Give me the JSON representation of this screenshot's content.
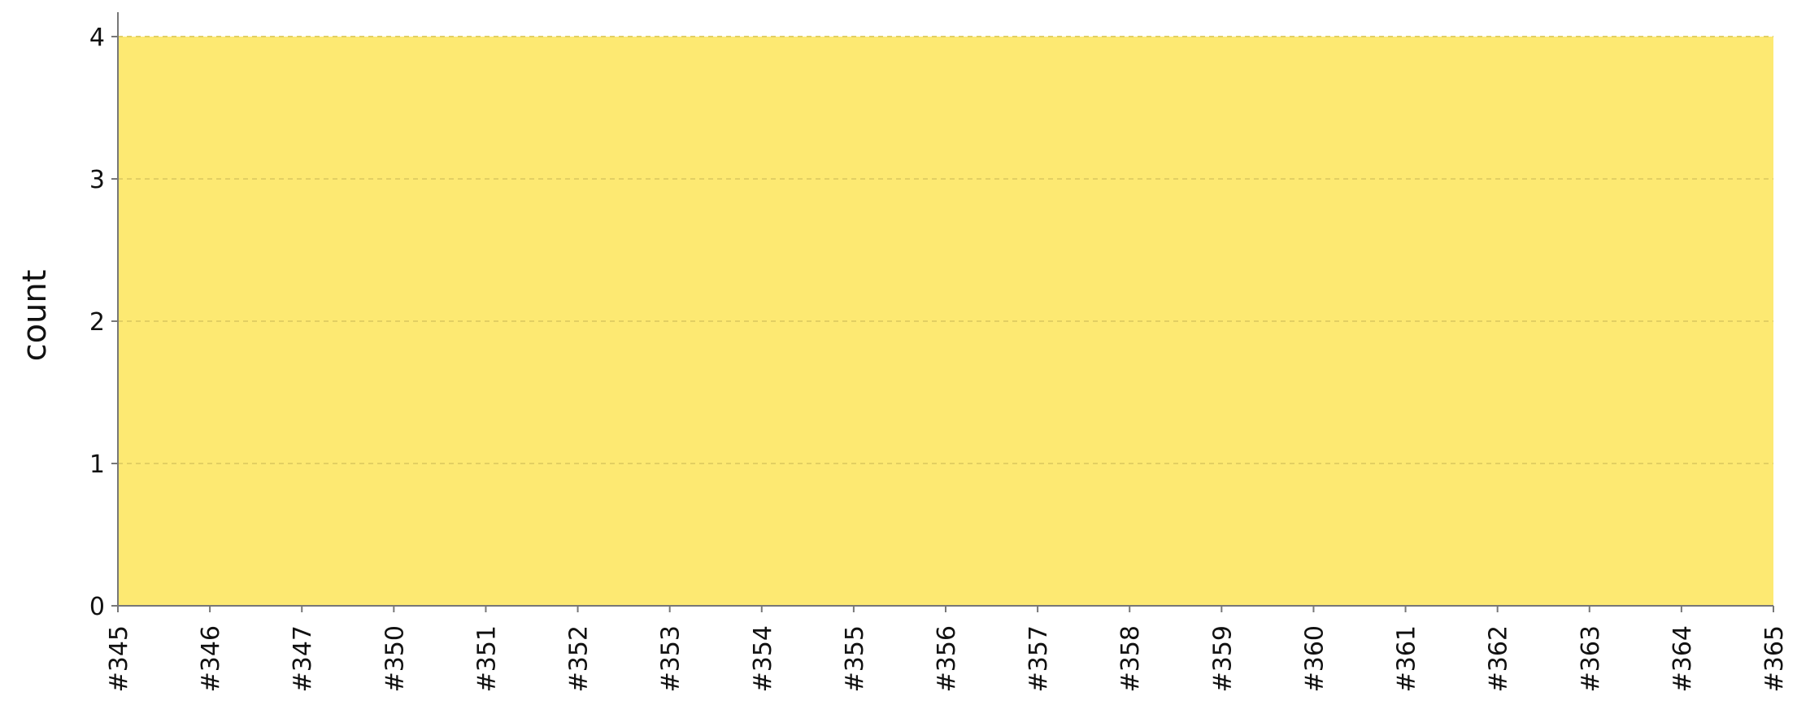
{
  "chart_data": {
    "type": "area",
    "ylabel": "count",
    "xlabel": "",
    "x": [
      "#345",
      "#346",
      "#347",
      "#350",
      "#351",
      "#352",
      "#353",
      "#354",
      "#355",
      "#356",
      "#357",
      "#358",
      "#359",
      "#360",
      "#361",
      "#362",
      "#363",
      "#364",
      "#365"
    ],
    "series": [
      {
        "values": [
          4,
          4,
          4,
          4,
          4,
          4,
          4,
          4,
          4,
          4,
          4,
          4,
          4,
          4,
          4,
          4,
          4,
          4,
          4
        ]
      }
    ],
    "ylim": [
      0,
      4
    ],
    "yticks": [
      "0",
      "1",
      "2",
      "3",
      "4"
    ],
    "grid": {
      "horizontal": true,
      "style": "dashed"
    },
    "colors": {
      "fill": "#fde972",
      "grid": "#e2cf63",
      "axis": "#777777",
      "text": "#111111"
    },
    "legend": "none"
  }
}
